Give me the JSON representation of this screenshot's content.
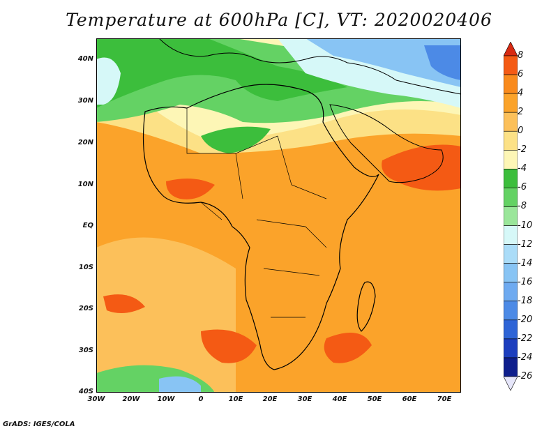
{
  "title": "Temperature at 600hPa [C], VT: 2020020406",
  "footer": "GrADS: IGES/COLA",
  "y_labels": [
    "40N",
    "30N",
    "20N",
    "10N",
    "EQ",
    "10S",
    "20S",
    "30S",
    "40S"
  ],
  "x_labels": [
    "30W",
    "20W",
    "10W",
    "0",
    "10E",
    "20E",
    "30E",
    "40E",
    "50E",
    "60E",
    "70E"
  ],
  "colorbar": {
    "labels": [
      "8",
      "6",
      "4",
      "2",
      "0",
      "-2",
      "-4",
      "-6",
      "-8",
      "-10",
      "-12",
      "-14",
      "-16",
      "-18",
      "-20",
      "-22",
      "-24",
      "-26"
    ],
    "colors": [
      "#d72a12",
      "#f45a14",
      "#f98a1c",
      "#fba32a",
      "#fcc05a",
      "#fce186",
      "#fdf6b6",
      "#3cbe3c",
      "#64d264",
      "#9ae69a",
      "#d6f8f8",
      "#aadcf8",
      "#88c4f4",
      "#6eaaf0",
      "#4c8ae6",
      "#2e64d6",
      "#1c3ebe",
      "#0e1e8c",
      "#e6e6fa"
    ]
  },
  "color_ramp": {
    "hot": "#f45a14",
    "warm": "#f98a1c",
    "mild": "#fba32a",
    "light": "#fcc05a",
    "cool": "#fce186",
    "green": "#3cbe3c",
    "lightgreen": "#64d264",
    "cyan": "#d6f8f8",
    "blue": "#88c4f4",
    "darkblue": "#4c8ae6"
  }
}
